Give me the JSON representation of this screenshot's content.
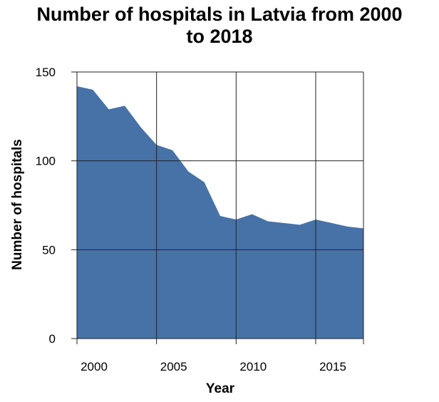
{
  "chart_data": {
    "type": "area",
    "title": "Number of hospitals in Latvia from 2000 to 2018",
    "title_lines": [
      "Number of hospitals in Latvia from 2000",
      "to 2018"
    ],
    "xlabel": "Year",
    "ylabel": "Number of hospitals",
    "xlim": [
      2000,
      2018
    ],
    "ylim": [
      0,
      150
    ],
    "x_ticks": [
      2000,
      2005,
      2010,
      2015
    ],
    "y_ticks": [
      0,
      50,
      100,
      150
    ],
    "grid": true,
    "x": [
      2000,
      2001,
      2002,
      2003,
      2004,
      2005,
      2006,
      2007,
      2008,
      2009,
      2010,
      2011,
      2012,
      2013,
      2014,
      2015,
      2016,
      2017,
      2018
    ],
    "series": [
      {
        "values": [
          142,
          140,
          129,
          131,
          119,
          109,
          106,
          94,
          88,
          69,
          67,
          70,
          66,
          65,
          64,
          67,
          65,
          63,
          62
        ],
        "color": "#4672a8"
      }
    ]
  }
}
